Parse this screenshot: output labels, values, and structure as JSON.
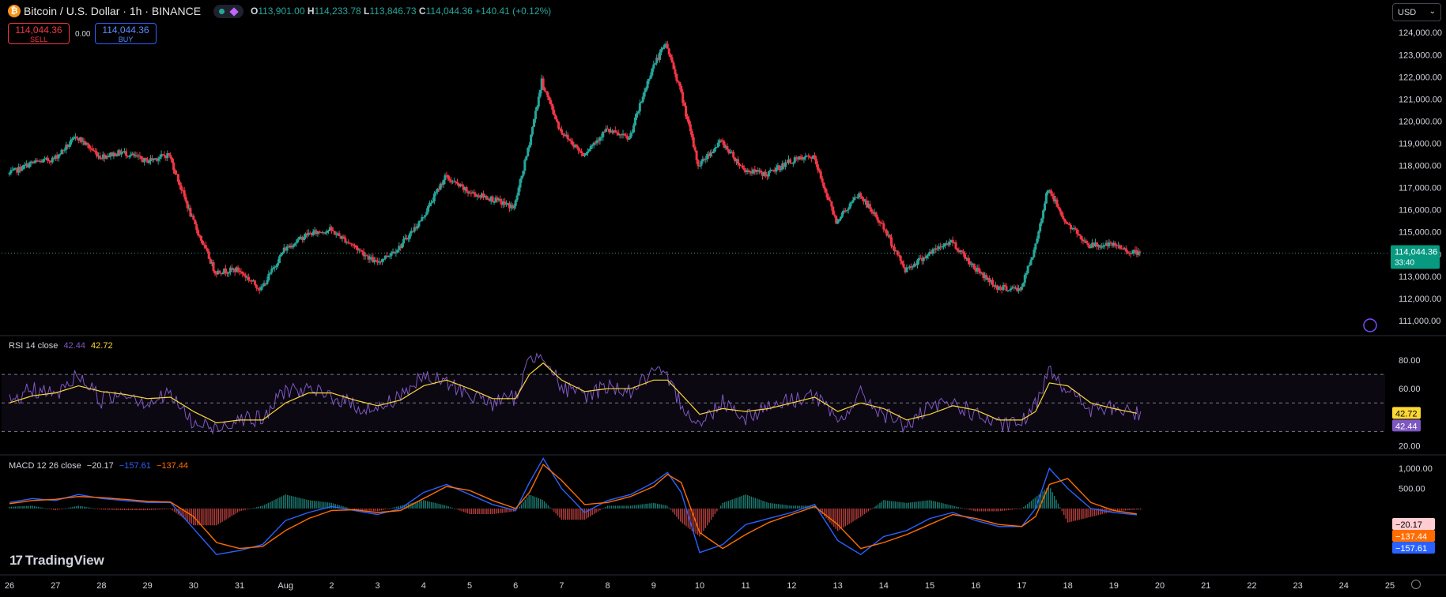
{
  "header": {
    "logo_glyph": "₿",
    "title": "Bitcoin / U.S. Dollar · 1h · BINANCE",
    "ohlc": {
      "o_label": "O",
      "o": "113,901.00",
      "h_label": "H",
      "h": "114,233.78",
      "l_label": "L",
      "l": "113,846.73",
      "c_label": "C",
      "c": "114,044.36",
      "change": "+140.41 (+0.12%)"
    }
  },
  "trade": {
    "sell_price": "114,044.36",
    "sell_label": "SELL",
    "spread": "0.00",
    "buy_price": "114,044.36",
    "buy_label": "BUY"
  },
  "currency_select": {
    "value": "USD"
  },
  "rsi_legend": {
    "name": "RSI 14 close",
    "rsi": "42.44",
    "ma": "42.72"
  },
  "macd_legend": {
    "name": "MACD 12 26 close",
    "hist": "−20.17",
    "macd": "−157.61",
    "signal": "−137.44"
  },
  "brand": {
    "mark": "17",
    "name": "TradingView"
  },
  "colors": {
    "up": "#26a69a",
    "down": "#f23645",
    "rsi": "#7e57c2",
    "rsi_ma": "#fdd835",
    "macd": "#2962ff",
    "signal": "#ff6d00",
    "hist_up": "#26a69a",
    "hist_down": "#ef5350"
  },
  "chart_data": [
    {
      "type": "candlestick",
      "interval": "1h",
      "ylim": [
        110500,
        124400
      ],
      "y_ticks": [
        "124,000.00",
        "123,000.00",
        "122,000.00",
        "121,000.00",
        "120,000.00",
        "119,000.00",
        "118,000.00",
        "117,000.00",
        "116,000.00",
        "115,000.00",
        "114,000.00",
        "113,000.00",
        "112,000.00",
        "111,000.00"
      ],
      "y_tick_values": [
        124000,
        123000,
        122000,
        121000,
        120000,
        119000,
        118000,
        117000,
        116000,
        115000,
        114000,
        113000,
        112000,
        111000
      ],
      "x_ticks": [
        "26",
        "27",
        "28",
        "29",
        "30",
        "31",
        "Aug",
        "2",
        "3",
        "4",
        "5",
        "6",
        "7",
        "8",
        "9",
        "10",
        "11",
        "12",
        "13",
        "14",
        "15",
        "16",
        "17",
        "18",
        "19",
        "20",
        "21",
        "22",
        "23",
        "24",
        "25"
      ],
      "x_tick_index": [
        0,
        1,
        2,
        3,
        4,
        5,
        6,
        7,
        8,
        9,
        10,
        11,
        12,
        13,
        14,
        15,
        16,
        17,
        18,
        19,
        20,
        21,
        22,
        23,
        24,
        25,
        26,
        27,
        28,
        29,
        30
      ],
      "price_path_days": [
        0,
        0.5,
        1,
        1.5,
        2,
        2.5,
        3,
        3.5,
        4,
        4.5,
        5,
        5.5,
        6,
        6.5,
        7,
        7.5,
        8,
        8.5,
        9,
        9.5,
        10,
        10.5,
        11,
        11.3,
        11.6,
        12,
        12.5,
        13,
        13.5,
        14,
        14.3,
        14.6,
        15,
        15.5,
        16,
        16.5,
        17,
        17.5,
        18,
        18.5,
        19,
        19.5,
        20,
        20.5,
        21,
        21.5,
        22,
        22.3,
        22.6,
        23,
        23.5,
        24,
        24.5
      ],
      "price_path_values": [
        117600,
        118100,
        118300,
        119300,
        118400,
        118600,
        118200,
        118500,
        115600,
        113200,
        113300,
        112400,
        114200,
        114900,
        115100,
        114400,
        113600,
        114300,
        115600,
        117500,
        116800,
        116500,
        116100,
        118700,
        121800,
        119600,
        118500,
        119600,
        119200,
        122400,
        123500,
        121500,
        118000,
        119100,
        117800,
        117600,
        118200,
        118400,
        115500,
        116700,
        115300,
        113300,
        114000,
        114600,
        113400,
        112500,
        112400,
        114100,
        117000,
        115400,
        114400,
        114400,
        114044.36
      ],
      "last_price": "114,044.36",
      "last_price_value": 114044.36,
      "countdown": "33:40"
    },
    {
      "type": "line",
      "name": "RSI 14 close",
      "ylim": [
        18,
        90
      ],
      "y_ticks": [
        "80.00",
        "60.00",
        "20.00"
      ],
      "y_tick_values": [
        80,
        60,
        20
      ],
      "band": [
        30,
        70
      ],
      "midline": 50,
      "rsi_days": [
        0,
        0.5,
        1,
        1.5,
        2,
        2.5,
        3,
        3.5,
        4,
        4.5,
        5,
        5.5,
        6,
        6.5,
        7,
        7.5,
        8,
        8.5,
        9,
        9.5,
        10,
        10.5,
        11,
        11.3,
        11.6,
        12,
        12.5,
        13,
        13.5,
        14,
        14.3,
        14.6,
        15,
        15.5,
        16,
        16.5,
        17,
        17.5,
        18,
        18.5,
        19,
        19.5,
        20,
        20.5,
        21,
        21.5,
        22,
        22.3,
        22.6,
        23,
        23.5,
        24,
        24.5
      ],
      "rsi_values": [
        50,
        60,
        55,
        70,
        52,
        58,
        50,
        56,
        35,
        32,
        40,
        38,
        60,
        58,
        55,
        48,
        45,
        56,
        68,
        64,
        56,
        50,
        54,
        80,
        86,
        60,
        55,
        62,
        58,
        72,
        66,
        50,
        34,
        52,
        40,
        48,
        52,
        56,
        36,
        56,
        42,
        34,
        46,
        50,
        42,
        34,
        36,
        48,
        76,
        58,
        45,
        46,
        42.44
      ],
      "ma_values": [
        50,
        55,
        57,
        62,
        58,
        56,
        53,
        54,
        44,
        36,
        38,
        38,
        50,
        57,
        57,
        52,
        48,
        52,
        62,
        66,
        60,
        53,
        53,
        70,
        78,
        66,
        58,
        60,
        60,
        66,
        66,
        56,
        42,
        46,
        44,
        46,
        50,
        54,
        44,
        50,
        46,
        38,
        42,
        48,
        45,
        38,
        38,
        44,
        64,
        62,
        50,
        46,
        42.72
      ],
      "rsi_last": "42.44",
      "ma_last": "42.72"
    },
    {
      "type": "line",
      "name": "MACD 12 26 close",
      "ylim": [
        -1500,
        1300
      ],
      "y_ticks": [
        "1,000.00",
        "500.00"
      ],
      "y_tick_values": [
        1000,
        500
      ],
      "macd_days": [
        0,
        0.5,
        1,
        1.5,
        2,
        2.5,
        3,
        3.5,
        4,
        4.5,
        5,
        5.5,
        6,
        6.5,
        7,
        7.5,
        8,
        8.5,
        9,
        9.5,
        10,
        10.5,
        11,
        11.3,
        11.6,
        12,
        12.5,
        13,
        13.5,
        14,
        14.3,
        14.6,
        15,
        15.5,
        16,
        16.5,
        17,
        17.5,
        18,
        18.5,
        19,
        19.5,
        20,
        20.5,
        21,
        21.5,
        22,
        22.3,
        22.6,
        23,
        23.5,
        24,
        24.5
      ],
      "macd_values": [
        150,
        250,
        200,
        350,
        250,
        200,
        150,
        150,
        -500,
        -1150,
        -1050,
        -900,
        -300,
        -100,
        50,
        -50,
        -150,
        0,
        400,
        600,
        350,
        100,
        -50,
        650,
        1250,
        500,
        -100,
        200,
        350,
        650,
        900,
        400,
        -1100,
        -900,
        -400,
        -250,
        -100,
        100,
        -800,
        -1150,
        -700,
        -550,
        -250,
        -100,
        -300,
        -450,
        -450,
        0,
        1000,
        500,
        0,
        -100,
        -157.61
      ],
      "signal_values": [
        120,
        200,
        230,
        300,
        270,
        230,
        180,
        160,
        -200,
        -850,
        -1000,
        -950,
        -550,
        -250,
        -50,
        -30,
        -100,
        -50,
        250,
        550,
        450,
        200,
        0,
        400,
        1100,
        700,
        100,
        150,
        300,
        550,
        850,
        650,
        -600,
        -1000,
        -650,
        -350,
        -150,
        50,
        -400,
        -1000,
        -850,
        -650,
        -400,
        -150,
        -250,
        -400,
        -450,
        -200,
        600,
        750,
        150,
        -50,
        -137.44
      ],
      "hist_last": "−20.17",
      "macd_last": "−157.61",
      "signal_last": "−137.44"
    }
  ]
}
